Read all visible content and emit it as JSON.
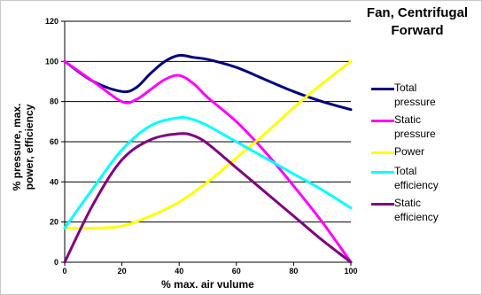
{
  "chart_data": {
    "type": "line",
    "title_lines": [
      "Fan, Centrifugal",
      "Forward"
    ],
    "xlabel": "% max. air vulume",
    "ylabel_lines": [
      "% pressure, max.",
      "power, efficiency"
    ],
    "xlim": [
      0,
      100
    ],
    "ylim": [
      0,
      120
    ],
    "x_ticks": [
      0,
      20,
      40,
      60,
      80,
      100
    ],
    "y_ticks": [
      0,
      20,
      40,
      60,
      80,
      100,
      120
    ],
    "grid": "horizontal",
    "legend_position": "right",
    "series": [
      {
        "name_lines": [
          "Total",
          "pressure"
        ],
        "color": "#000080",
        "x": [
          0,
          10,
          20,
          25,
          30,
          35,
          40,
          45,
          50,
          60,
          70,
          80,
          90,
          100
        ],
        "y": [
          100,
          90,
          85,
          87,
          94,
          100,
          103,
          102,
          101,
          97,
          91,
          85,
          80,
          76
        ]
      },
      {
        "name_lines": [
          "Static",
          "pressure"
        ],
        "color": "#ff00ff",
        "x": [
          0,
          10,
          20,
          25,
          30,
          35,
          40,
          45,
          50,
          60,
          70,
          80,
          90,
          100
        ],
        "y": [
          100,
          90,
          80,
          81,
          86,
          91,
          93,
          89,
          82,
          70,
          55,
          38,
          20,
          0
        ]
      },
      {
        "name_lines": [
          "Power"
        ],
        "color": "#ffff00",
        "x": [
          0,
          10,
          20,
          30,
          40,
          50,
          60,
          70,
          80,
          90,
          100
        ],
        "y": [
          17,
          17,
          18,
          23,
          30,
          40,
          52,
          64,
          77,
          89,
          100
        ]
      },
      {
        "name_lines": [
          "Total",
          "efficiency"
        ],
        "color": "#00ffff",
        "x": [
          0,
          10,
          20,
          30,
          40,
          45,
          50,
          60,
          70,
          80,
          90,
          100
        ],
        "y": [
          17,
          37,
          56,
          68,
          72,
          71,
          68,
          60,
          52,
          44,
          36,
          27
        ]
      },
      {
        "name_lines": [
          "Static",
          "efficiency"
        ],
        "color": "#800080",
        "x": [
          0,
          10,
          20,
          30,
          40,
          45,
          50,
          60,
          70,
          80,
          90,
          100
        ],
        "y": [
          0,
          29,
          51,
          61,
          64,
          63,
          59,
          47,
          35,
          23,
          11,
          0
        ]
      }
    ]
  }
}
